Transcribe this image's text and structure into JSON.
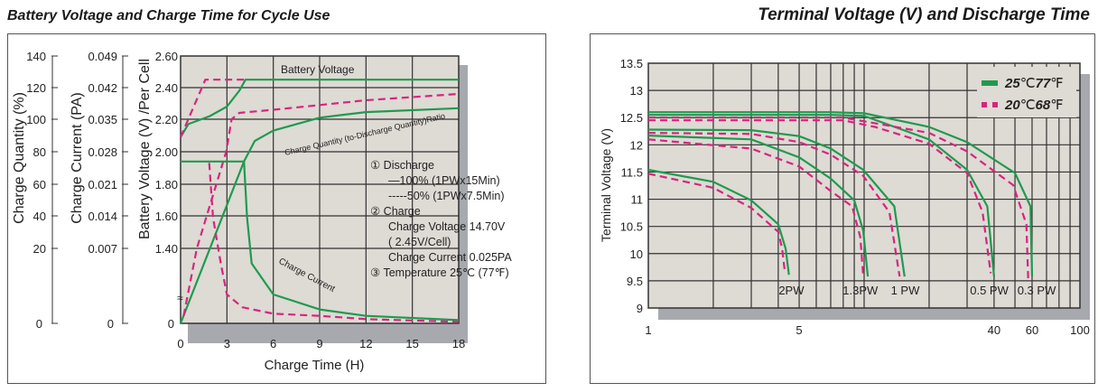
{
  "titles": {
    "left": "Battery Voltage and Charge Time for Cycle Use",
    "right": "Terminal Voltage (V) and Discharge Time"
  },
  "colors": {
    "green": "#1f9a4f",
    "pink": "#d6267e",
    "plot_bg": "#dedad4",
    "shadow": "#a7a9ae",
    "grid": "#333333"
  },
  "chart_data": [
    {
      "type": "line",
      "title": "Battery Voltage and Charge Time for Cycle Use",
      "xlabel": "Charge Time (H)",
      "xlim": [
        0,
        18
      ],
      "xticks": [
        "0",
        "3",
        "6",
        "9",
        "12",
        "15",
        "18"
      ],
      "y_axes": [
        {
          "label": "Charge Quantity (%)",
          "ticks": [
            "140",
            "120",
            "100",
            "80",
            "60",
            "40",
            "20",
            "0"
          ]
        },
        {
          "label": "Charge Current (PA)",
          "ticks": [
            "0.049",
            "0.042",
            "0.035",
            "0.028",
            "0.021",
            "0.014",
            "0.007",
            "0"
          ]
        },
        {
          "label": "Battery Voltage (V) /Per Cell",
          "ticks": [
            "2.60",
            "2.40",
            "2.20",
            "2.00",
            "1.80",
            "1.60",
            "1.40",
            "0"
          ]
        }
      ],
      "grid": true,
      "annotations": {
        "battery_voltage": "Battery Voltage",
        "charge_quantity": "Charge Quantity (to-Discharge Quantity)Ratio",
        "charge_current": "Charge Current",
        "axis_break": "≈"
      },
      "notes": [
        "① Discharge",
        "—100% (1PWx15Min)",
        "-----50% (1PWx7.5Min)",
        "② Charge",
        "Charge Voltage 14.70V",
        "( 2.45V/Cell)",
        "Charge Current 0.025PA",
        "③ Temperature 25℃ (77℉)"
      ],
      "series": [
        {
          "name": "Battery Voltage 100%",
          "unit": "V",
          "style": "solid",
          "color": "green",
          "points": [
            [
              0,
              2.09
            ],
            [
              0.5,
              2.17
            ],
            [
              1.9,
              2.22
            ],
            [
              3,
              2.28
            ],
            [
              3.8,
              2.38
            ],
            [
              4.2,
              2.45
            ],
            [
              18,
              2.45
            ]
          ]
        },
        {
          "name": "Battery Voltage 50%",
          "unit": "V",
          "style": "dashed",
          "color": "pink",
          "points": [
            [
              0,
              2.09
            ],
            [
              1.6,
              2.45
            ],
            [
              4.2,
              2.45
            ]
          ]
        },
        {
          "name": "Charge Quantity 100%",
          "unit": "%",
          "style": "solid",
          "color": "green",
          "points": [
            [
              0,
              0
            ],
            [
              4.1,
              74
            ],
            [
              4.8,
              86.6
            ],
            [
              6,
              93
            ],
            [
              9,
              101
            ],
            [
              12,
              104.5
            ],
            [
              18,
              107
            ]
          ]
        },
        {
          "name": "Charge Quantity 50%",
          "unit": "%",
          "style": "dashed",
          "color": "pink",
          "points": [
            [
              0.2,
              2
            ],
            [
              1.05,
              20
            ],
            [
              2.95,
              80
            ],
            [
              3.3,
              100
            ],
            [
              3.8,
              104
            ],
            [
              6,
              106
            ],
            [
              9,
              109
            ],
            [
              12,
              112
            ],
            [
              18,
              116
            ]
          ]
        },
        {
          "name": "Charge Current 100%",
          "unit": "PA",
          "style": "solid",
          "color": "green",
          "points": [
            [
              0,
              0.0259
            ],
            [
              4.1,
              0.0259
            ],
            [
              4.3,
              0.0137
            ],
            [
              4.6,
              0.0056
            ],
            [
              6,
              0.0027
            ],
            [
              9,
              0.0013
            ],
            [
              12,
              0.0007
            ],
            [
              18,
              0.0003
            ]
          ]
        },
        {
          "name": "Charge Current 50%",
          "unit": "PA",
          "style": "dashed",
          "color": "pink",
          "points": [
            [
              1.85,
              0.0256
            ],
            [
              2.1,
              0.0137
            ],
            [
              2.6,
              0.0056
            ],
            [
              3.0,
              0.0027
            ],
            [
              4,
              0.0015
            ],
            [
              6,
              0.0009
            ],
            [
              9,
              0.0007
            ],
            [
              12,
              0.0004
            ],
            [
              18,
              0.00014
            ]
          ]
        }
      ]
    },
    {
      "type": "line",
      "title": "Terminal Voltage (V) and Discharge Time",
      "ylabel": "Terminal Voltage (V)",
      "xscale": "log",
      "xlim": [
        1,
        100
      ],
      "ylim": [
        9,
        13.5
      ],
      "xticks": [
        {
          "v": 1,
          "label": "1"
        },
        {
          "v": 5,
          "label": "5"
        },
        {
          "v": 40,
          "label": "40"
        },
        {
          "v": 60,
          "label": "60"
        },
        {
          "v": 100,
          "label": "100"
        }
      ],
      "xgrid": [
        2,
        3,
        4,
        5,
        6,
        7,
        8,
        9,
        10,
        20,
        30,
        40,
        50,
        60,
        70,
        80,
        90
      ],
      "yticks": [
        "13.5",
        "13",
        "12.5",
        "12",
        "11.5",
        "11",
        "10.5",
        "10",
        "9.5",
        "9"
      ],
      "legend": {
        "position": "top-right",
        "entries": [
          {
            "temp_c": "25",
            "unit_c": "℃",
            "temp_f": "77",
            "unit_f": "℉",
            "color": "green",
            "style": "solid"
          },
          {
            "temp_c": "20",
            "unit_c": "℃",
            "temp_f": "68",
            "unit_f": "℉",
            "color": "pink",
            "style": "dashed"
          }
        ]
      },
      "curve_labels": [
        {
          "label": "2PW",
          "x": 4.6
        },
        {
          "label": "1.3PW",
          "x": 9.6
        },
        {
          "label": "1 PW",
          "x": 15.5
        },
        {
          "label": "0.5 PW",
          "x": 38
        },
        {
          "label": "0.3 PW",
          "x": 63
        }
      ],
      "series": [
        {
          "name": "2PW 25°C",
          "color": "green",
          "style": "solid",
          "points": [
            [
              1,
              11.54
            ],
            [
              2,
              11.32
            ],
            [
              3,
              10.98
            ],
            [
              4,
              10.54
            ],
            [
              4.33,
              10.09
            ],
            [
              4.48,
              9.61
            ]
          ]
        },
        {
          "name": "2PW 20°C",
          "color": "pink",
          "style": "dashed",
          "points": [
            [
              1,
              11.47
            ],
            [
              2,
              11.21
            ],
            [
              3,
              10.84
            ],
            [
              4,
              10.4
            ],
            [
              4.17,
              10.09
            ],
            [
              4.3,
              9.64
            ]
          ]
        },
        {
          "name": "1.3PW 25°C",
          "color": "green",
          "style": "solid",
          "points": [
            [
              1,
              12.17
            ],
            [
              3,
              12.1
            ],
            [
              5,
              11.77
            ],
            [
              7,
              11.38
            ],
            [
              9,
              10.98
            ],
            [
              9.9,
              10.42
            ],
            [
              10.4,
              9.58
            ]
          ]
        },
        {
          "name": "1.3PW 20°C",
          "color": "pink",
          "style": "dashed",
          "points": [
            [
              1,
              12.1
            ],
            [
              3,
              11.93
            ],
            [
              5,
              11.6
            ],
            [
              7,
              11.15
            ],
            [
              8.8,
              10.87
            ],
            [
              9.6,
              10.3
            ],
            [
              9.9,
              9.58
            ]
          ]
        },
        {
          "name": "1PW 25°C",
          "color": "green",
          "style": "solid",
          "points": [
            [
              1,
              12.28
            ],
            [
              3,
              12.27
            ],
            [
              5,
              12.16
            ],
            [
              7,
              11.93
            ],
            [
              9.9,
              11.54
            ],
            [
              13.8,
              10.87
            ],
            [
              15.4,
              9.58
            ]
          ]
        },
        {
          "name": "1PW 20°C",
          "color": "pink",
          "style": "dashed",
          "points": [
            [
              1,
              12.22
            ],
            [
              3,
              12.2
            ],
            [
              5,
              12.05
            ],
            [
              7,
              11.82
            ],
            [
              9.9,
              11.43
            ],
            [
              13.1,
              10.76
            ],
            [
              14.6,
              9.58
            ]
          ]
        },
        {
          "name": "0.5PW 25°C",
          "color": "green",
          "style": "solid",
          "points": [
            [
              1,
              12.55
            ],
            [
              7,
              12.55
            ],
            [
              10,
              12.53
            ],
            [
              20,
              12.1
            ],
            [
              30,
              11.54
            ],
            [
              37.2,
              10.87
            ],
            [
              40,
              9.58
            ]
          ]
        },
        {
          "name": "0.5PW 20°C",
          "color": "pink",
          "style": "dashed",
          "points": [
            [
              1,
              12.45
            ],
            [
              8,
              12.45
            ],
            [
              11.2,
              12.33
            ],
            [
              20,
              12.02
            ],
            [
              30,
              11.48
            ],
            [
              35.4,
              10.76
            ],
            [
              38.6,
              9.64
            ]
          ]
        },
        {
          "name": "0.3PW 25°C",
          "color": "green",
          "style": "solid",
          "points": [
            [
              1,
              12.6
            ],
            [
              7,
              12.6
            ],
            [
              10,
              12.58
            ],
            [
              20,
              12.33
            ],
            [
              30,
              12.05
            ],
            [
              50,
              11.48
            ],
            [
              59,
              10.87
            ],
            [
              60,
              9.58
            ]
          ]
        },
        {
          "name": "0.3PW 20°C",
          "color": "pink",
          "style": "dashed",
          "points": [
            [
              1,
              12.5
            ],
            [
              8,
              12.5
            ],
            [
              20,
              12.22
            ],
            [
              30,
              11.88
            ],
            [
              49,
              11.26
            ],
            [
              56.5,
              10.54
            ],
            [
              57.6,
              9.53
            ]
          ]
        }
      ]
    }
  ]
}
